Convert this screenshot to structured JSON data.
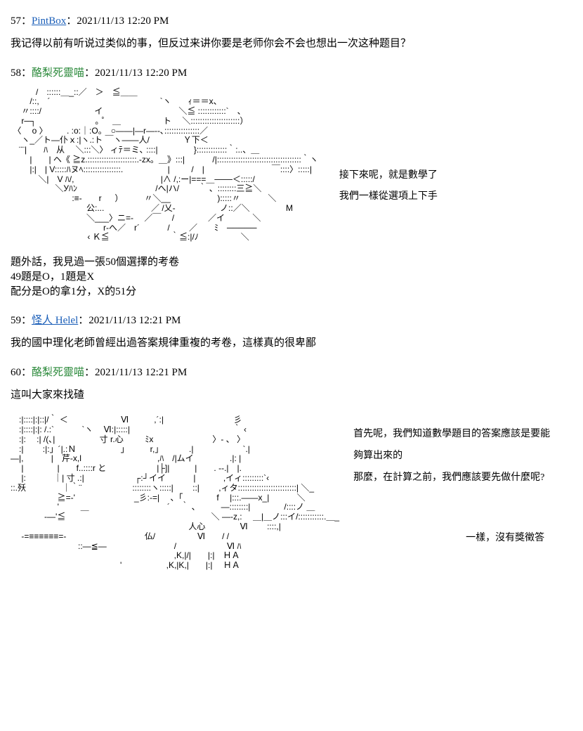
{
  "posts": [
    {
      "num": "57",
      "user": "PintBox",
      "user_style": "link",
      "time": "2021/11/13 12:20 PM",
      "body": "我记得以前有听说过类似的事，但反过来讲你要是老师你会不会也想出一次这种题目？"
    },
    {
      "num": "58",
      "user": "酪梨死靈喵",
      "user_style": "green",
      "time": "2021/11/13 12:20 PM",
      "aa": "　　　/　::::::＿_::／　＞　≦＿＿\n　　 /::,　´　　　　　　　　　　　　　`ヽ　　ｨ＝＝x、\n　 〃::::/　　　　　　 イ　　　　　　　　　＼≦ ::::::::::::`　、\n　 r─┐　　　　　　　｡ ゜ ＿　　　　　ト　 ＼:::::::::::::::::::::）\n 〈　 o 〉 　　. :o:｜:O。　○――|―r―‐-､:::::::::::::::／\n　 ヽ_／ト―仆ｘ:|ヽ.:ト ￣ヽ――人/　　　　Ｙ下＜\n　¨¨|　　ﾊ　从 　＼:::＼〉 ィﾃ＝ミ､ ::::|　　　　 }:::::::::::::｀:..、＿\n　　 |　　| ヘ《 ≧z.:::::::::::::::::::::.-zx。＿》:::|　　　 /|::::::::::::::::::::::::::::::::::::｀ヽ\n　　 |:|　| V:::::ﾊヌﾍ::::::::::::::::.　　　　　 |　 　 /　|　　　　　　　　￣::::〉:::::|\n　　　 ＼|　V ﾊ/,　　　　　　　　　　 |∧ /,:ー|===＿───＜:::::/\n　　　　　 ＼Уﾊﾝ　　　　　　　　　 /へ|ハ/　　 ｀ 、::::::::三≧＼\n　　　　　　　 :≡-　　r 　 ）　　　〃＼__　　　 　 　):::::〃　　　 ＼\n　　　　　　　　　公:... 　　　　　 ／ /乂-　　 　　　ノ::／＼　　　　 Μ\n　　　　　　　　　＼___〉ニ=-　 ／￣　 /　　　　／イ　　　 ＼\n　　　　　　　　　　　r‐へ／　r´　　　 /　　 ／　　ﾐ　─────\n　　 　 　 　　　　 ‹ Ｋ≦ 　　　　　　　｀≦:|/ﾉ　　　　　＼",
      "side_lines": [
        "接下來呢，就是數學了",
        "我們一樣從選項上下手"
      ],
      "extra": "題外話，我見過一張50個選擇的考卷\n49題是O，1題是X\n配分是O的拿1分，X的51分"
    },
    {
      "num": "59",
      "user": "怪人 Helel",
      "user_style": "link",
      "time": "2021/11/13 12:21 PM",
      "body": "我的國中理化老師曾經出過答案規律重複的考卷，這樣真的很卑鄙"
    },
    {
      "num": "60",
      "user": "酪梨死靈喵",
      "user_style": "green",
      "time": "2021/11/13 12:21 PM",
      "body": "這叫大家來找碴",
      "aa": "　:|::::|:|::|/｀ ＜　　　　　　 Ⅵ　　　,´:|　　　　　　　　 彡\n　:|::::|:|: /.:`　　　 `ヽ　 Ⅵ:|:::::|　 　　　 　 　 　 　 　 　 ｀ ‹\n　:|: 　:| /(､|　　　　　 寸 r.心　 　 ﾐx　　　　　　　〉- 、 〉\n　:|　 　:|:」´|.:Ｎ　　　　　 」　　　r,」　　 　 .| 　　　　 　 `.|\n―|,　 　　|　芹-x,l　　　　　　　　　,ﾊ　/|ムイ　　　　 .|: |\n　 |　　　　|　　f..::::r と　　　　　　|├]|　　　|　　. -‐.|　|.\n　 |:　　　 ｜| 寸 .:|　　　　　　┌:┘イイ　　　 |　　　 ,イィ:::::::::`‹\n::.殀　　　　 ｜｀¨　　　　　　::::::::ヽ:::::| 　　::|　　 ,ィタ:::::::::::::::::::::::::| ＼_\n　　　　 　 ≧=-'　　　　　　　_彡:-=|　 、「　　　　f　 |:::.――x_|　　　 ＼\n　　 　　 　'　 　 ＿　　　　　　　　　 ´　 ｀ 、　　　―::::::::|　　　　/::::ノ ＿\n　　　　‐―'≦　　　　　　　　　　　　　　　　　 ＼ ―‐z,: 　＿|＿ノ:::イ/:::::::::::.＿_\n　　　　　　　　　　　　　　　　　 　 　 　 人心 　 　 　 Ⅵ　　 ::::,|\n　 ‐=≡≡≡≡≡≡=-　　　　　　　　　 仏/　　　　　Ⅵ　　/ /\n　　　　　　　　::―≦―　　　　　　　　/　　　　　　Ⅵ ﾊ\n　　　　　　　　　　　　　　 　 　 　 　 ,K,|/|　　|:|　ＨＡ\n　　　　　　　　　　　　　'　　　　　 ,K,|K,|　　|:|　 ＨＡ",
      "side2_lines": [
        "首先呢，我們知道數學題目的答案應該是要能夠算出來的",
        "那麼，在計算之前，我們應該要先做什麼呢?"
      ],
      "side2_far": "一樣，沒有獎徵答"
    }
  ]
}
